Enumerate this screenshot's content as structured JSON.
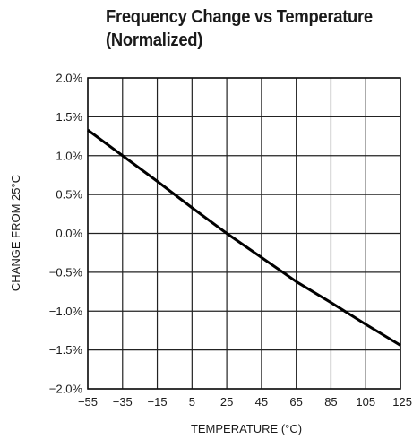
{
  "chart_data": {
    "type": "line",
    "title_line1": "Frequency Change vs Temperature",
    "title_line2": "(Normalized)",
    "xlabel": "TEMPERATURE (°C)",
    "ylabel": "CHANGE FROM 25°C",
    "xlim": [
      -55,
      125
    ],
    "ylim": [
      -2.0,
      2.0
    ],
    "x_ticks": [
      "−55",
      "−35",
      "−15",
      "5",
      "25",
      "45",
      "65",
      "85",
      "105",
      "125"
    ],
    "x_tick_values": [
      -55,
      -35,
      -15,
      5,
      25,
      45,
      65,
      85,
      105,
      125
    ],
    "y_ticks": [
      "2.0%",
      "1.5%",
      "1.0%",
      "0.5%",
      "0.0%",
      "−0.5%",
      "−1.0%",
      "−1.5%",
      "−2.0%"
    ],
    "y_tick_values": [
      2.0,
      1.5,
      1.0,
      0.5,
      0.0,
      -0.5,
      -1.0,
      -1.5,
      -2.0
    ],
    "grid": true,
    "series": [
      {
        "color": "#000000",
        "x": [
          -55,
          -35,
          -15,
          5,
          25,
          45,
          65,
          85,
          105,
          125
        ],
        "y": [
          1.33,
          1.0,
          0.67,
          0.33,
          0.0,
          -0.31,
          -0.62,
          -0.89,
          -1.17,
          -1.44
        ]
      }
    ]
  }
}
